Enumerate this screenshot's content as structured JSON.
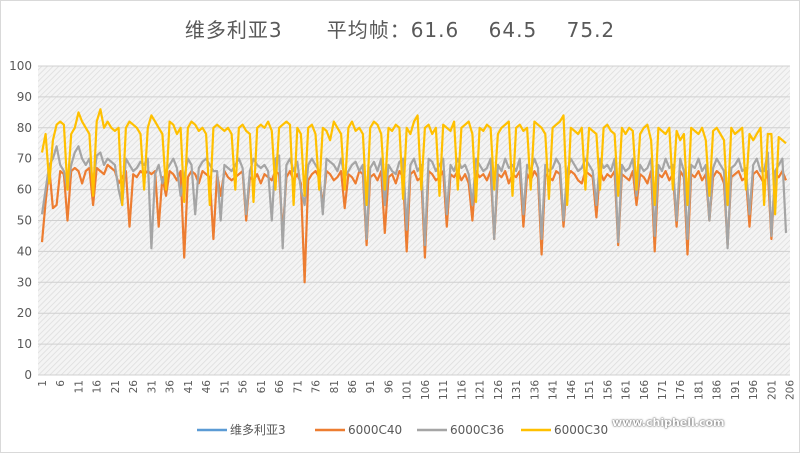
{
  "title": "维多利亚3      平均帧：61.6    64.5    75.2",
  "watermark": "www.chiphell.com",
  "chart_data": {
    "type": "line",
    "title": "维多利亚3      平均帧：61.6    64.5    75.2",
    "xlabel": "",
    "ylabel": "",
    "ylim": [
      0,
      100
    ],
    "yticks": [
      0,
      10,
      20,
      30,
      40,
      50,
      60,
      70,
      80,
      90,
      100
    ],
    "xlim": [
      1,
      205
    ],
    "xtick_step": 5,
    "grid": true,
    "legend_position": "bottom",
    "series": [
      {
        "name": "维多利亚3",
        "color": "#5B9BD5",
        "values": []
      },
      {
        "name": "6000C40",
        "color": "#ED7D31",
        "values": [
          43,
          56,
          67,
          54,
          55,
          66,
          65,
          50,
          66,
          67,
          66,
          62,
          66,
          67,
          55,
          67,
          66,
          65,
          68,
          67,
          66,
          62,
          64,
          66,
          48,
          65,
          64,
          66,
          65,
          66,
          65,
          66,
          48,
          64,
          58,
          66,
          65,
          63,
          66,
          38,
          64,
          66,
          65,
          62,
          66,
          65,
          64,
          44,
          65,
          58,
          66,
          64,
          63,
          64,
          65,
          66,
          50,
          64,
          63,
          65,
          62,
          65,
          64,
          63,
          66,
          65,
          46,
          64,
          66,
          63,
          65,
          62,
          30,
          63,
          65,
          66,
          64,
          55,
          66,
          65,
          63,
          64,
          66,
          54,
          65,
          64,
          62,
          66,
          65,
          42,
          64,
          65,
          63,
          66,
          46,
          64,
          65,
          62,
          66,
          64,
          40,
          65,
          66,
          63,
          64,
          38,
          66,
          65,
          63,
          64,
          66,
          48,
          65,
          64,
          66,
          63,
          65,
          62,
          50,
          66,
          64,
          65,
          63,
          66,
          44,
          65,
          64,
          66,
          62,
          65,
          64,
          66,
          48,
          65,
          63,
          66,
          64,
          39,
          65,
          64,
          63,
          66,
          65,
          48,
          64,
          66,
          65,
          63,
          62,
          66,
          65,
          64,
          51,
          66,
          63,
          65,
          64,
          66,
          42,
          65,
          64,
          63,
          66,
          55,
          65,
          64,
          62,
          66,
          40,
          65,
          64,
          66,
          63,
          65,
          48,
          66,
          64,
          39,
          65,
          64,
          66,
          63,
          65,
          50,
          64,
          66,
          65,
          62,
          42,
          64,
          65,
          66,
          63,
          64,
          48,
          65,
          66,
          64,
          62,
          66,
          44,
          65,
          64,
          66,
          63
        ]
      },
      {
        "name": "6000C36",
        "color": "#A5A5A5",
        "values": [
          52,
          60,
          68,
          70,
          74,
          68,
          66,
          60,
          68,
          72,
          74,
          70,
          68,
          70,
          62,
          71,
          72,
          68,
          70,
          69,
          68,
          60,
          55,
          70,
          68,
          66,
          67,
          69,
          68,
          70,
          41,
          65,
          68,
          62,
          66,
          68,
          70,
          67,
          58,
          64,
          70,
          68,
          52,
          67,
          69,
          70,
          68,
          66,
          66,
          50,
          68,
          67,
          66,
          68,
          70,
          67,
          52,
          66,
          70,
          68,
          67,
          68,
          66,
          50,
          70,
          71,
          41,
          68,
          70,
          66,
          69,
          60,
          55,
          68,
          70,
          68,
          66,
          52,
          70,
          69,
          68,
          66,
          70,
          64,
          66,
          68,
          69,
          66,
          68,
          44,
          67,
          69,
          66,
          70,
          55,
          68,
          66,
          65,
          69,
          70,
          47,
          68,
          70,
          66,
          68,
          42,
          70,
          69,
          66,
          68,
          70,
          52,
          68,
          66,
          70,
          67,
          68,
          65,
          55,
          70,
          68,
          66,
          67,
          70,
          44,
          68,
          66,
          70,
          67,
          68,
          66,
          70,
          52,
          68,
          66,
          70,
          67,
          44,
          68,
          66,
          67,
          70,
          68,
          50,
          66,
          70,
          68,
          66,
          67,
          70,
          68,
          66,
          55,
          70,
          67,
          68,
          66,
          70,
          43,
          68,
          66,
          67,
          70,
          58,
          68,
          66,
          67,
          70,
          45,
          68,
          66,
          70,
          67,
          68,
          50,
          70,
          66,
          44,
          68,
          67,
          70,
          66,
          68,
          50,
          67,
          70,
          68,
          66,
          41,
          67,
          68,
          70,
          66,
          67,
          52,
          68,
          70,
          66,
          66,
          72,
          45,
          66,
          68,
          70,
          46
        ]
      },
      {
        "name": "6000C30",
        "color": "#FFC000",
        "values": [
          72,
          78,
          62,
          76,
          81,
          82,
          81,
          60,
          78,
          80,
          85,
          82,
          80,
          78,
          58,
          82,
          86,
          80,
          82,
          80,
          79,
          80,
          55,
          80,
          82,
          81,
          80,
          78,
          60,
          80,
          84,
          82,
          80,
          78,
          60,
          82,
          81,
          78,
          80,
          56,
          80,
          82,
          81,
          79,
          80,
          78,
          55,
          80,
          81,
          80,
          79,
          80,
          78,
          60,
          80,
          81,
          79,
          78,
          56,
          80,
          81,
          80,
          82,
          79,
          60,
          80,
          81,
          82,
          81,
          55,
          80,
          78,
          58,
          80,
          81,
          78,
          60,
          80,
          79,
          76,
          82,
          80,
          78,
          60,
          80,
          82,
          79,
          80,
          78,
          55,
          80,
          82,
          81,
          78,
          60,
          80,
          79,
          81,
          80,
          57,
          80,
          78,
          82,
          84,
          60,
          80,
          81,
          78,
          80,
          58,
          81,
          80,
          79,
          82,
          60,
          80,
          81,
          82,
          78,
          56,
          80,
          79,
          81,
          80,
          60,
          78,
          80,
          81,
          82,
          58,
          80,
          81,
          79,
          80,
          60,
          82,
          81,
          80,
          78,
          57,
          80,
          81,
          82,
          84,
          55,
          80,
          79,
          78,
          80,
          60,
          80,
          79,
          78,
          60,
          80,
          81,
          79,
          78,
          58,
          80,
          78,
          80,
          79,
          60,
          78,
          80,
          81,
          76,
          55,
          80,
          79,
          78,
          80,
          60,
          79,
          76,
          78,
          55,
          80,
          79,
          78,
          80,
          76,
          58,
          79,
          80,
          78,
          76,
          55,
          80,
          78,
          79,
          80,
          60,
          78,
          76,
          78,
          80,
          55,
          78,
          78,
          52,
          77,
          76,
          75
        ]
      }
    ]
  }
}
